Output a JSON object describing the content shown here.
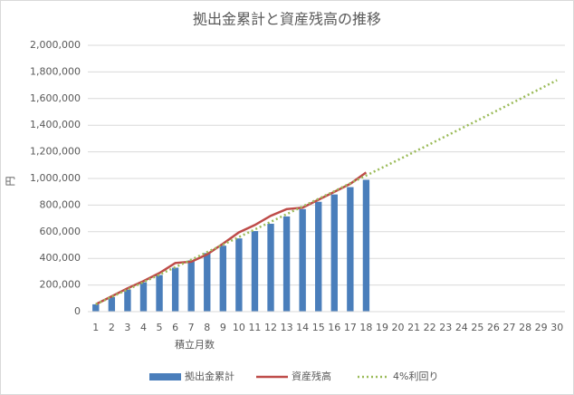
{
  "chart_data": {
    "type": "bar",
    "title": "拠出金累計と資産残高の推移",
    "x_label": "積立月数",
    "y_label": "円",
    "categories": [
      "1",
      "2",
      "3",
      "4",
      "5",
      "6",
      "7",
      "8",
      "9",
      "10",
      "11",
      "12",
      "13",
      "14",
      "15",
      "16",
      "17",
      "18",
      "19",
      "20",
      "21",
      "22",
      "23",
      "24",
      "25",
      "26",
      "27",
      "28",
      "29",
      "30"
    ],
    "ylim": [
      0,
      2000000
    ],
    "yticks": [
      0,
      {
        "value": 200000,
        "label": "200,000"
      },
      {
        "value": 400000,
        "label": "400,000"
      },
      {
        "value": 600000,
        "label": "600,000"
      },
      {
        "value": 800000,
        "label": "800,000"
      },
      {
        "value": 1000000,
        "label": "1,000,000"
      },
      {
        "value": 1200000,
        "label": "1,200,000"
      },
      {
        "value": 1400000,
        "label": "1,400,000"
      },
      {
        "value": 1600000,
        "label": "1,600,000"
      },
      {
        "value": 1800000,
        "label": "1,800,000"
      },
      {
        "value": 2000000,
        "label": "2,000,000"
      }
    ],
    "grid": true,
    "legend": "bottom",
    "series": [
      {
        "name": "拠出金累計",
        "type": "bar",
        "color": "#4a7ebb",
        "values": [
          55000,
          110000,
          165000,
          220000,
          275000,
          330000,
          385000,
          440000,
          495000,
          550000,
          605000,
          660000,
          715000,
          770000,
          825000,
          880000,
          935000,
          990000,
          null,
          null,
          null,
          null,
          null,
          null,
          null,
          null,
          null,
          null,
          null,
          null
        ]
      },
      {
        "name": "資産残高",
        "type": "line",
        "color": "#be4b48",
        "values": [
          55000,
          115000,
          175000,
          230000,
          290000,
          365000,
          375000,
          430000,
          510000,
          595000,
          650000,
          720000,
          770000,
          780000,
          840000,
          900000,
          960000,
          1045000,
          null,
          null,
          null,
          null,
          null,
          null,
          null,
          null,
          null,
          null,
          null,
          null
        ]
      },
      {
        "name": "4%利回り",
        "type": "line",
        "style": "dotted",
        "color": "#9bbb59",
        "values": [
          55000,
          111000,
          166000,
          222000,
          278000,
          334000,
          390000,
          447000,
          503000,
          560000,
          617000,
          674000,
          732000,
          790000,
          847000,
          905000,
          964000,
          1022000,
          1081000,
          1139000,
          1198000,
          1257000,
          1317000,
          1376000,
          1436000,
          1496000,
          1556000,
          1617000,
          1677000,
          1738000
        ]
      }
    ]
  }
}
